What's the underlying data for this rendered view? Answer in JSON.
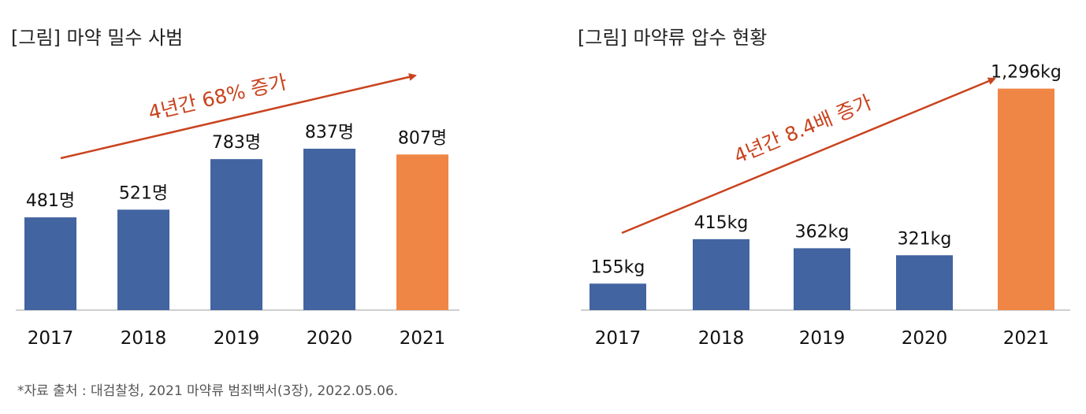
{
  "colors": {
    "bar": "#4264A0",
    "highlight": "#F08646",
    "arrow": "#C9431E",
    "axis": "#BFBFBF"
  },
  "source": "*자료 출처 : 대검찰청, 2021 마약류 범죄백서(3장), 2022.05.06.",
  "chart_data": [
    {
      "type": "bar",
      "title": "[그림] 마약 밀수 사범",
      "categories": [
        "2017",
        "2018",
        "2019",
        "2020",
        "2021"
      ],
      "values": [
        481,
        521,
        783,
        837,
        807
      ],
      "value_labels": [
        "481명",
        "521명",
        "783명",
        "837명",
        "807명"
      ],
      "highlight_index": 4,
      "ylim": [
        0,
        1000
      ],
      "annotation": "4년간 68% 증가",
      "grid": false
    },
    {
      "type": "bar",
      "title": "[그림] 마약류 압수 현황",
      "categories": [
        "2017",
        "2018",
        "2019",
        "2020",
        "2021"
      ],
      "values": [
        155,
        415,
        362,
        321,
        1296
      ],
      "value_labels": [
        "155kg",
        "415kg",
        "362kg",
        "321kg",
        "1,296kg"
      ],
      "highlight_index": 4,
      "ylim": [
        0,
        1400
      ],
      "annotation": "4년간 8.4배 증가",
      "grid": false
    }
  ]
}
